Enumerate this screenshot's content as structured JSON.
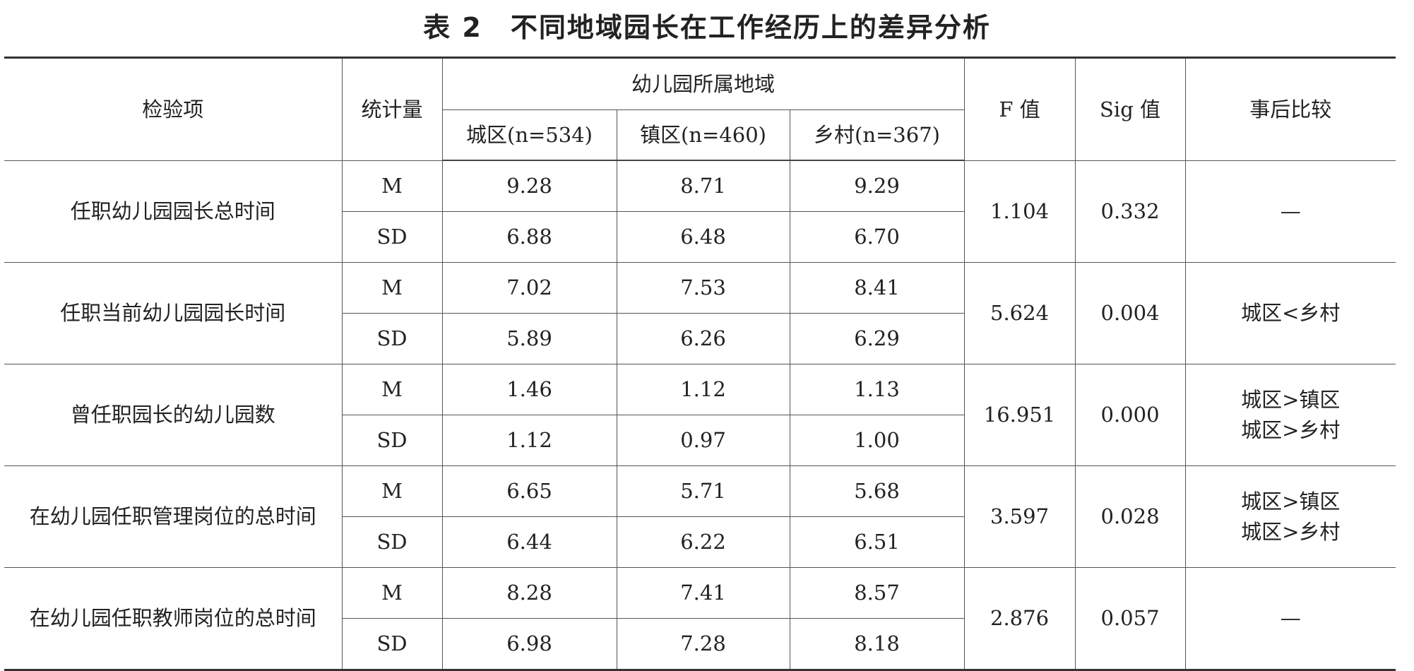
{
  "title": "表 2　不同地域园长在工作经历上的差异分析",
  "header": {
    "item": "检验项",
    "stat": "统计量",
    "region_group": "幼儿园所属地域",
    "regions": [
      "城区(n=534)",
      "镇区(n=460)",
      "乡村(n=367)"
    ],
    "f": "F 值",
    "sig": "Sig 值",
    "posthoc": "事后比较"
  },
  "rows": [
    {
      "item": "任职幼儿园园长总时间",
      "m_label": "M",
      "sd_label": "SD",
      "m": [
        "9.28",
        "8.71",
        "9.29"
      ],
      "sd": [
        "6.88",
        "6.48",
        "6.70"
      ],
      "f": "1.104",
      "sig": "0.332",
      "posthoc": [
        "—",
        ""
      ]
    },
    {
      "item": "任职当前幼儿园园长时间",
      "m_label": "M",
      "sd_label": "SD",
      "m": [
        "7.02",
        "7.53",
        "8.41"
      ],
      "sd": [
        "5.89",
        "6.26",
        "6.29"
      ],
      "f": "5.624",
      "sig": "0.004",
      "posthoc": [
        "城区<乡村",
        ""
      ]
    },
    {
      "item": "曾任职园长的幼儿园数",
      "m_label": "M",
      "sd_label": "SD",
      "m": [
        "1.46",
        "1.12",
        "1.13"
      ],
      "sd": [
        "1.12",
        "0.97",
        "1.00"
      ],
      "f": "16.951",
      "sig": "0.000",
      "posthoc": [
        "城区>镇区",
        "城区>乡村"
      ]
    },
    {
      "item": "在幼儿园任职管理岗位的总时间",
      "m_label": "M",
      "sd_label": "SD",
      "m": [
        "6.65",
        "5.71",
        "5.68"
      ],
      "sd": [
        "6.44",
        "6.22",
        "6.51"
      ],
      "f": "3.597",
      "sig": "0.028",
      "posthoc": [
        "城区>镇区",
        "城区>乡村"
      ]
    },
    {
      "item": "在幼儿园任职教师岗位的总时间",
      "m_label": "M",
      "sd_label": "SD",
      "m": [
        "8.28",
        "7.41",
        "8.57"
      ],
      "sd": [
        "6.98",
        "7.28",
        "8.18"
      ],
      "f": "2.876",
      "sig": "0.057",
      "posthoc": [
        "—",
        ""
      ]
    }
  ]
}
